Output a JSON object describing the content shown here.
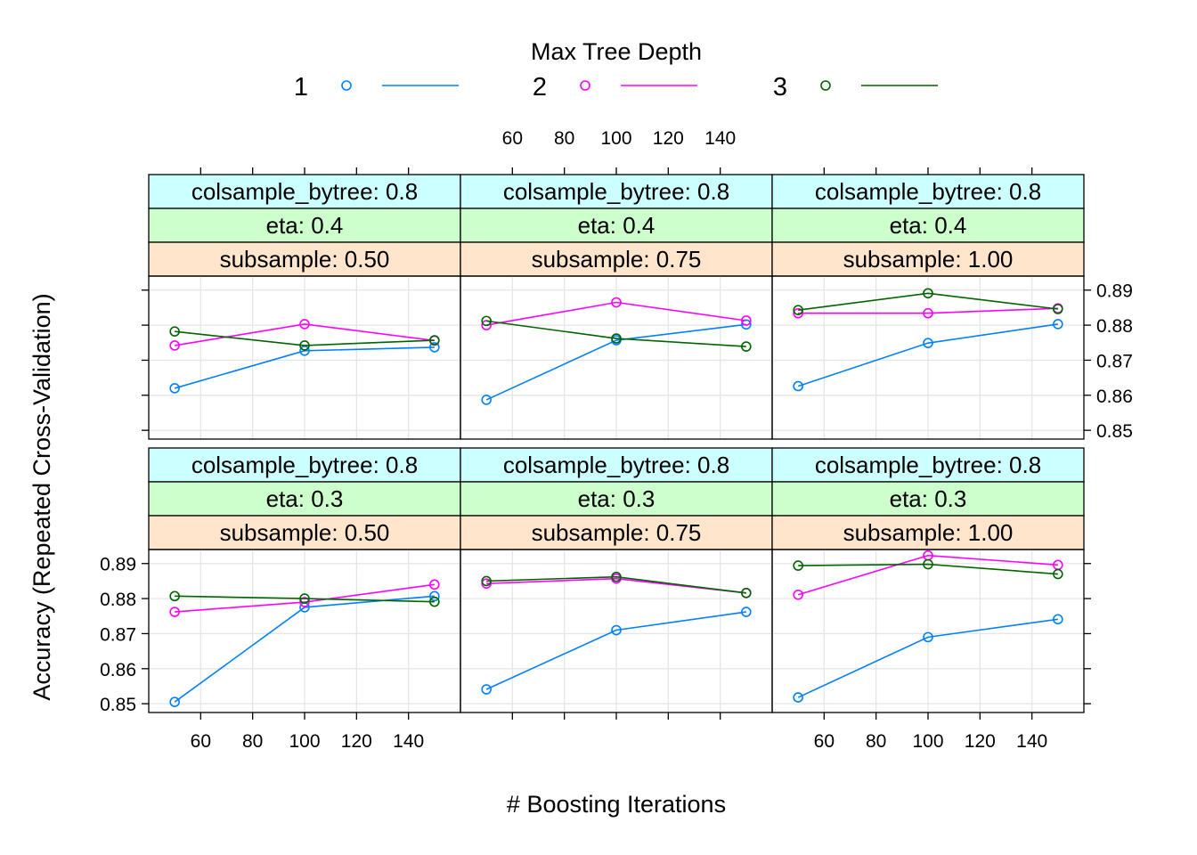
{
  "chart_data": {
    "type": "line",
    "xlabel": "# Boosting Iterations",
    "ylabel": "Accuracy (Repeated Cross-Validation)",
    "x": [
      50,
      100,
      150
    ],
    "xlim": [
      40,
      160
    ],
    "ylim": [
      0.8475,
      0.894
    ],
    "x_ticks": [
      60,
      80,
      100,
      120,
      140
    ],
    "y_ticks": [
      0.85,
      0.86,
      0.87,
      0.88,
      0.89
    ],
    "grid": true,
    "legend": {
      "title": "Max Tree Depth",
      "position": "top",
      "entries": [
        {
          "label": "1",
          "color": "#0080ff"
        },
        {
          "label": "2",
          "color": "#ff00ff"
        },
        {
          "label": "3",
          "color": "#006400"
        }
      ]
    },
    "strip_colors": {
      "colsample_bytree": "#ccffff",
      "eta": "#ccffcc",
      "subsample": "#ffe5cc"
    },
    "panels": [
      {
        "colsample_bytree": "colsample_bytree: 0.8",
        "eta": "eta: 0.3",
        "subsample": "subsample: 0.50",
        "series": [
          {
            "name": "1",
            "values": [
              0.8505,
              0.8775,
              0.8807
            ]
          },
          {
            "name": "2",
            "values": [
              0.8762,
              0.879,
              0.884
            ]
          },
          {
            "name": "3",
            "values": [
              0.8807,
              0.88,
              0.8791
            ]
          }
        ]
      },
      {
        "colsample_bytree": "colsample_bytree: 0.8",
        "eta": "eta: 0.3",
        "subsample": "subsample: 0.75",
        "series": [
          {
            "name": "1",
            "values": [
              0.8541,
              0.871,
              0.8762
            ]
          },
          {
            "name": "2",
            "values": [
              0.8843,
              0.8857,
              0.8816
            ]
          },
          {
            "name": "3",
            "values": [
              0.885,
              0.8862,
              0.8816
            ]
          }
        ]
      },
      {
        "colsample_bytree": "colsample_bytree: 0.8",
        "eta": "eta: 0.3",
        "subsample": "subsample: 1.00",
        "series": [
          {
            "name": "1",
            "values": [
              0.8518,
              0.869,
              0.8741
            ]
          },
          {
            "name": "2",
            "values": [
              0.8811,
              0.8923,
              0.8896
            ]
          },
          {
            "name": "3",
            "values": [
              0.8894,
              0.8898,
              0.887
            ]
          }
        ]
      },
      {
        "colsample_bytree": "colsample_bytree: 0.8",
        "eta": "eta: 0.4",
        "subsample": "subsample: 0.50",
        "series": [
          {
            "name": "1",
            "values": [
              0.862,
              0.8727,
              0.8737
            ]
          },
          {
            "name": "2",
            "values": [
              0.8742,
              0.8803,
              0.8756
            ]
          },
          {
            "name": "3",
            "values": [
              0.8782,
              0.8742,
              0.8757
            ]
          }
        ]
      },
      {
        "colsample_bytree": "colsample_bytree: 0.8",
        "eta": "eta: 0.4",
        "subsample": "subsample: 0.75",
        "series": [
          {
            "name": "1",
            "values": [
              0.8587,
              0.8757,
              0.8802
            ]
          },
          {
            "name": "2",
            "values": [
              0.88,
              0.8865,
              0.8813
            ]
          },
          {
            "name": "3",
            "values": [
              0.8812,
              0.8762,
              0.8739
            ]
          }
        ]
      },
      {
        "colsample_bytree": "colsample_bytree: 0.8",
        "eta": "eta: 0.4",
        "subsample": "subsample: 1.00",
        "series": [
          {
            "name": "1",
            "values": [
              0.8626,
              0.8749,
              0.8803
            ]
          },
          {
            "name": "2",
            "values": [
              0.8834,
              0.8834,
              0.8848
            ]
          },
          {
            "name": "3",
            "values": [
              0.8843,
              0.8891,
              0.8846
            ]
          }
        ]
      }
    ]
  }
}
